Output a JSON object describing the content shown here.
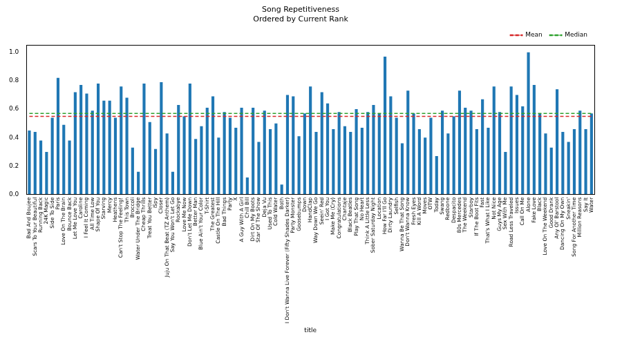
{
  "chart_data": {
    "type": "bar",
    "title": [
      "Song Repetitiveness",
      "Ordered by Current Rank"
    ],
    "x_label": "title",
    "categories": [
      "Bad And Boujee",
      "Scars To Your Beautiful",
      "Running Back",
      "24K Magic",
      "Side To Side",
      "Paris",
      "Love On The Brain",
      "Bounce Back",
      "Let Me Love You",
      "Caroline",
      "I Feel It Coming",
      "All Time Low",
      "Shape Of You",
      "Starving",
      "Mercy",
      "Heathens",
      "Can't Stop The Feeling!",
      "This Town",
      "Broccoli",
      "Water Under The Bridge",
      "Cheap Thrills",
      "Treat You Better",
      "iSpy",
      "Closer",
      "Juju On That Beat (TZ Anthem)",
      "Say You Won't Let Go",
      "Rockabye",
      "Love Me Now",
      "Don't Let Me Down",
      "Better Man",
      "Blue Ain't Your Color",
      "T-Shirt",
      "The Greatest",
      "Castle On The Hill",
      "Bad Things",
      "Party",
      "X",
      "A Guy With A Girl",
      "Chill Bill",
      "Dirt On My Boots",
      "Star Of The Show",
      "Deja Vu",
      "Used To This",
      "Cold Water",
      "Both",
      "I Don't Wanna Live Forever (Fifty Shades Darker)",
      "Party Monster",
      "Goosebumps",
      "Down",
      "HandClap",
      "Way Down We Go",
      "Seein' Red",
      "I Got You",
      "Make Me (Cry)",
      "Congratulations",
      "Chantaje",
      "Black Beatles",
      "Play That Song",
      "No Heart",
      "Think A Little Less",
      "Sober Saturday Night",
      "Location",
      "How Far I'll Go",
      "Dirty Laundry",
      "Selfish",
      "Wanna Be That Song",
      "Don't Wanna Know",
      "Fresh Eyes",
      "Kill A Word",
      "Moves",
      "OTW",
      "Today",
      "Swang",
      "Redbone",
      "Despacito",
      "80s Mercedes",
      "The Weekend",
      "Starboy",
      "If The Boot Fits",
      "Fast",
      "That's What I Like",
      "Not Nice",
      "Guys My Age",
      "Sex With Me",
      "Road Less Traveled",
      "Issues",
      "Call On Me",
      "Alone",
      "Fake Love",
      "Black",
      "Love On The Weekend",
      "Good Drank",
      "Any Ol' Barstool",
      "Dancing On My Own",
      "Sneakin'",
      "Song For Another Time",
      "Million Reasons",
      "Say It",
      "Water"
    ],
    "values": [
      0.45,
      0.44,
      0.38,
      0.3,
      0.54,
      0.82,
      0.49,
      0.38,
      0.72,
      0.77,
      0.71,
      0.59,
      0.78,
      0.66,
      0.66,
      0.54,
      0.76,
      0.68,
      0.33,
      0.16,
      0.78,
      0.51,
      0.32,
      0.79,
      0.43,
      0.16,
      0.63,
      0.55,
      0.78,
      0.39,
      0.48,
      0.61,
      0.69,
      0.4,
      0.58,
      0.54,
      0.47,
      0.61,
      0.12,
      0.61,
      0.37,
      0.59,
      0.46,
      0.5,
      0.07,
      0.7,
      0.69,
      0.41,
      0.57,
      0.76,
      0.44,
      0.72,
      0.64,
      0.46,
      0.58,
      0.48,
      0.44,
      0.6,
      0.47,
      0.58,
      0.63,
      0.57,
      0.97,
      0.69,
      0.54,
      0.36,
      0.73,
      0.57,
      0.46,
      0.4,
      0.54,
      0.27,
      0.59,
      0.43,
      0.55,
      0.73,
      0.61,
      0.59,
      0.46,
      0.67,
      0.47,
      0.76,
      0.58,
      0.3,
      0.76,
      0.7,
      0.62,
      1.0,
      0.77,
      0.57,
      0.43,
      0.33,
      0.74,
      0.44,
      0.37,
      0.46,
      0.59,
      0.46,
      0.57
    ],
    "color": "#1f77b4",
    "reference_lines": [
      {
        "name": "Mean",
        "value": 0.55,
        "color": "#d62728",
        "line_style": "dashed"
      },
      {
        "name": "Median",
        "value": 0.57,
        "color": "#2ca02c",
        "line_style": "dashed"
      }
    ],
    "ylim": [
      0,
      1.05
    ],
    "yticks": [
      {
        "value": 0,
        "label": "0.0"
      },
      {
        "value": 0.2,
        "label": "0.2"
      },
      {
        "value": 0.4,
        "label": "0.4"
      },
      {
        "value": 0.6,
        "label": "0.6"
      },
      {
        "value": 0.8,
        "label": "0.8"
      },
      {
        "value": 1.0,
        "label": "1.0"
      }
    ],
    "grid": false,
    "legend": "upper right"
  }
}
